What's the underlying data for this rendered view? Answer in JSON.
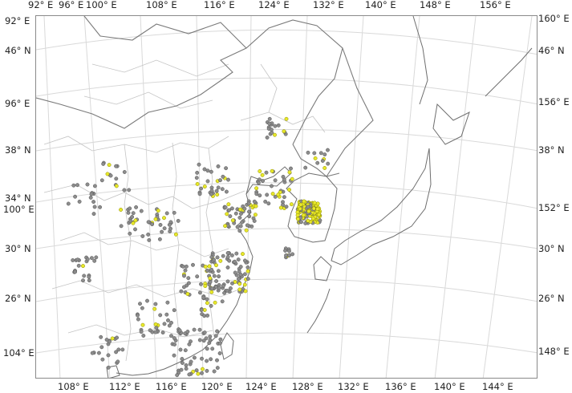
{
  "map": {
    "top_labels": [
      "92° E",
      "96° E",
      "100° E",
      "108° E",
      "116° E",
      "124° E",
      "132° E",
      "140° E",
      "148° E",
      "156° E"
    ],
    "bottom_labels": [
      "108° E",
      "112° E",
      "116° E",
      "120° E",
      "124° E",
      "128° E",
      "132° E",
      "136° E",
      "140° E",
      "144° E"
    ],
    "left_labels": [
      "92° E",
      "46° N",
      "96° E",
      "38° N",
      "34° N",
      "100° E",
      "30° N",
      "26° N",
      "104° E"
    ],
    "right_labels": [
      "160° E",
      "46° N",
      "156° E",
      "38° N",
      "152° E",
      "30° N",
      "26° N",
      "148° E"
    ],
    "colors": {
      "frame": "#8a8a8a",
      "graticule": "#d9d9d9",
      "province_border": "#c4c4c4",
      "country_border": "#7a7a7a",
      "coastline": "#6e6e6e",
      "station_gray": "#8c8c8c",
      "station_gray_edge": "#555555",
      "station_yellow": "#e8e82a",
      "station_yellow_edge": "#8a8a00"
    }
  }
}
